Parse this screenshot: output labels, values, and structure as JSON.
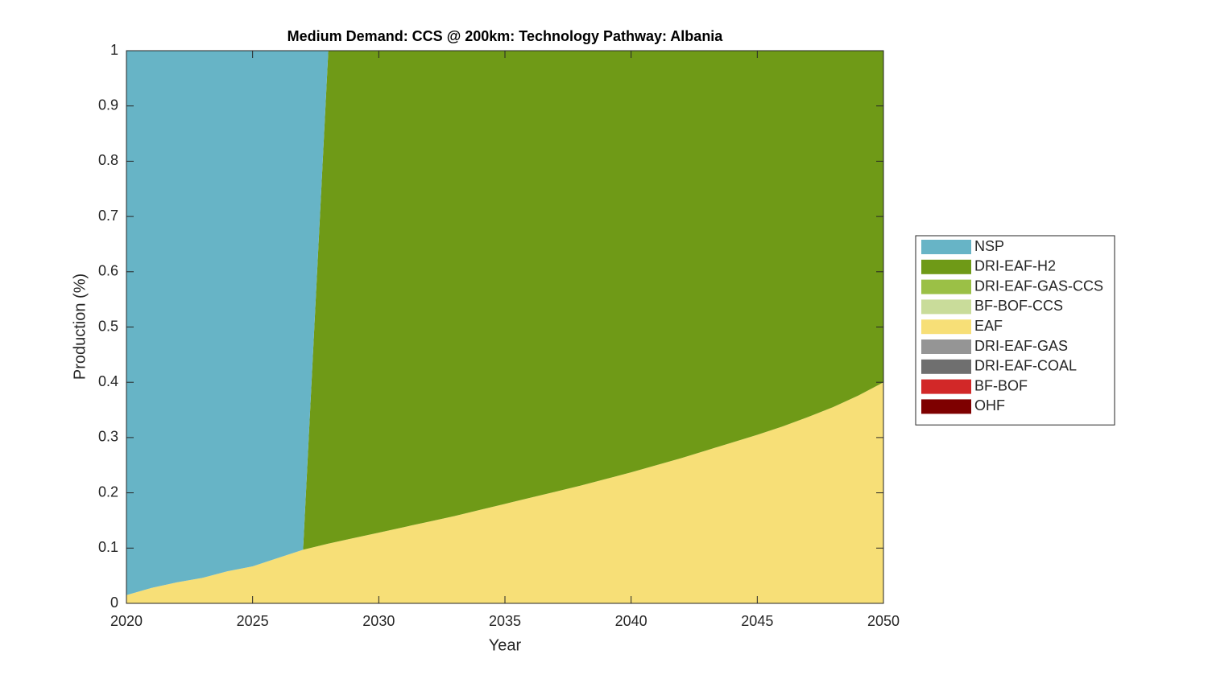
{
  "chart_data": {
    "type": "stacked-area",
    "title": "Medium Demand: CCS @ 200km: Technology Pathway: Albania",
    "x_label": "Year",
    "y_label": "Production (%)",
    "x": [
      2020,
      2021,
      2022,
      2023,
      2024,
      2025,
      2026,
      2027,
      2028,
      2029,
      2030,
      2031,
      2032,
      2033,
      2034,
      2035,
      2036,
      2037,
      2038,
      2039,
      2040,
      2041,
      2042,
      2043,
      2044,
      2045,
      2046,
      2047,
      2048,
      2049,
      2050
    ],
    "series": [
      {
        "name": "NSP",
        "color": "#67b4c6",
        "values": [
          0.985,
          0.972,
          0.962,
          0.954,
          0.942,
          0.933,
          0.918,
          0.903,
          0,
          0,
          0,
          0,
          0,
          0,
          0,
          0,
          0,
          0,
          0,
          0,
          0,
          0,
          0,
          0,
          0,
          0,
          0,
          0,
          0,
          0,
          0
        ]
      },
      {
        "name": "DRI-EAF-H2",
        "color": "#6f9a17",
        "values": [
          0,
          0,
          0,
          0,
          0,
          0,
          0,
          0,
          0.892,
          0.882,
          0.872,
          0.862,
          0.852,
          0.842,
          0.831,
          0.82,
          0.809,
          0.798,
          0.787,
          0.775,
          0.763,
          0.75,
          0.737,
          0.723,
          0.709,
          0.695,
          0.68,
          0.663,
          0.645,
          0.624,
          0.6
        ]
      },
      {
        "name": "DRI-EAF-GAS-CCS",
        "color": "#9bc046",
        "values": [
          0,
          0,
          0,
          0,
          0,
          0,
          0,
          0,
          0,
          0,
          0,
          0,
          0,
          0,
          0,
          0,
          0,
          0,
          0,
          0,
          0,
          0,
          0,
          0,
          0,
          0,
          0,
          0,
          0,
          0,
          0
        ]
      },
      {
        "name": "BF-BOF-CCS",
        "color": "#c9dc9a",
        "values": [
          0,
          0,
          0,
          0,
          0,
          0,
          0,
          0,
          0,
          0,
          0,
          0,
          0,
          0,
          0,
          0,
          0,
          0,
          0,
          0,
          0,
          0,
          0,
          0,
          0,
          0,
          0,
          0,
          0,
          0,
          0
        ]
      },
      {
        "name": "EAF",
        "color": "#f7df77",
        "values": [
          0.015,
          0.028,
          0.038,
          0.046,
          0.058,
          0.067,
          0.082,
          0.097,
          0.108,
          0.118,
          0.128,
          0.138,
          0.148,
          0.158,
          0.169,
          0.18,
          0.191,
          0.202,
          0.213,
          0.225,
          0.237,
          0.25,
          0.263,
          0.277,
          0.291,
          0.305,
          0.32,
          0.337,
          0.355,
          0.376,
          0.4
        ]
      },
      {
        "name": "DRI-EAF-GAS",
        "color": "#959595",
        "values": [
          0,
          0,
          0,
          0,
          0,
          0,
          0,
          0,
          0,
          0,
          0,
          0,
          0,
          0,
          0,
          0,
          0,
          0,
          0,
          0,
          0,
          0,
          0,
          0,
          0,
          0,
          0,
          0,
          0,
          0,
          0
        ]
      },
      {
        "name": "DRI-EAF-COAL",
        "color": "#6f6f6f",
        "values": [
          0,
          0,
          0,
          0,
          0,
          0,
          0,
          0,
          0,
          0,
          0,
          0,
          0,
          0,
          0,
          0,
          0,
          0,
          0,
          0,
          0,
          0,
          0,
          0,
          0,
          0,
          0,
          0,
          0,
          0,
          0
        ]
      },
      {
        "name": "BF-BOF",
        "color": "#d22828",
        "values": [
          0,
          0,
          0,
          0,
          0,
          0,
          0,
          0,
          0,
          0,
          0,
          0,
          0,
          0,
          0,
          0,
          0,
          0,
          0,
          0,
          0,
          0,
          0,
          0,
          0,
          0,
          0,
          0,
          0,
          0,
          0
        ]
      },
      {
        "name": "OHF",
        "color": "#7e0000",
        "values": [
          0,
          0,
          0,
          0,
          0,
          0,
          0,
          0,
          0,
          0,
          0,
          0,
          0,
          0,
          0,
          0,
          0,
          0,
          0,
          0,
          0,
          0,
          0,
          0,
          0,
          0,
          0,
          0,
          0,
          0,
          0
        ]
      }
    ],
    "xlim": [
      2020,
      2050
    ],
    "xticks": [
      2020,
      2025,
      2030,
      2035,
      2040,
      2045,
      2050
    ],
    "ylim": [
      0,
      1
    ],
    "yticks": [
      0,
      0.1,
      0.2,
      0.3,
      0.4,
      0.5,
      0.6,
      0.7,
      0.8,
      0.9,
      1
    ],
    "legend": "right"
  }
}
